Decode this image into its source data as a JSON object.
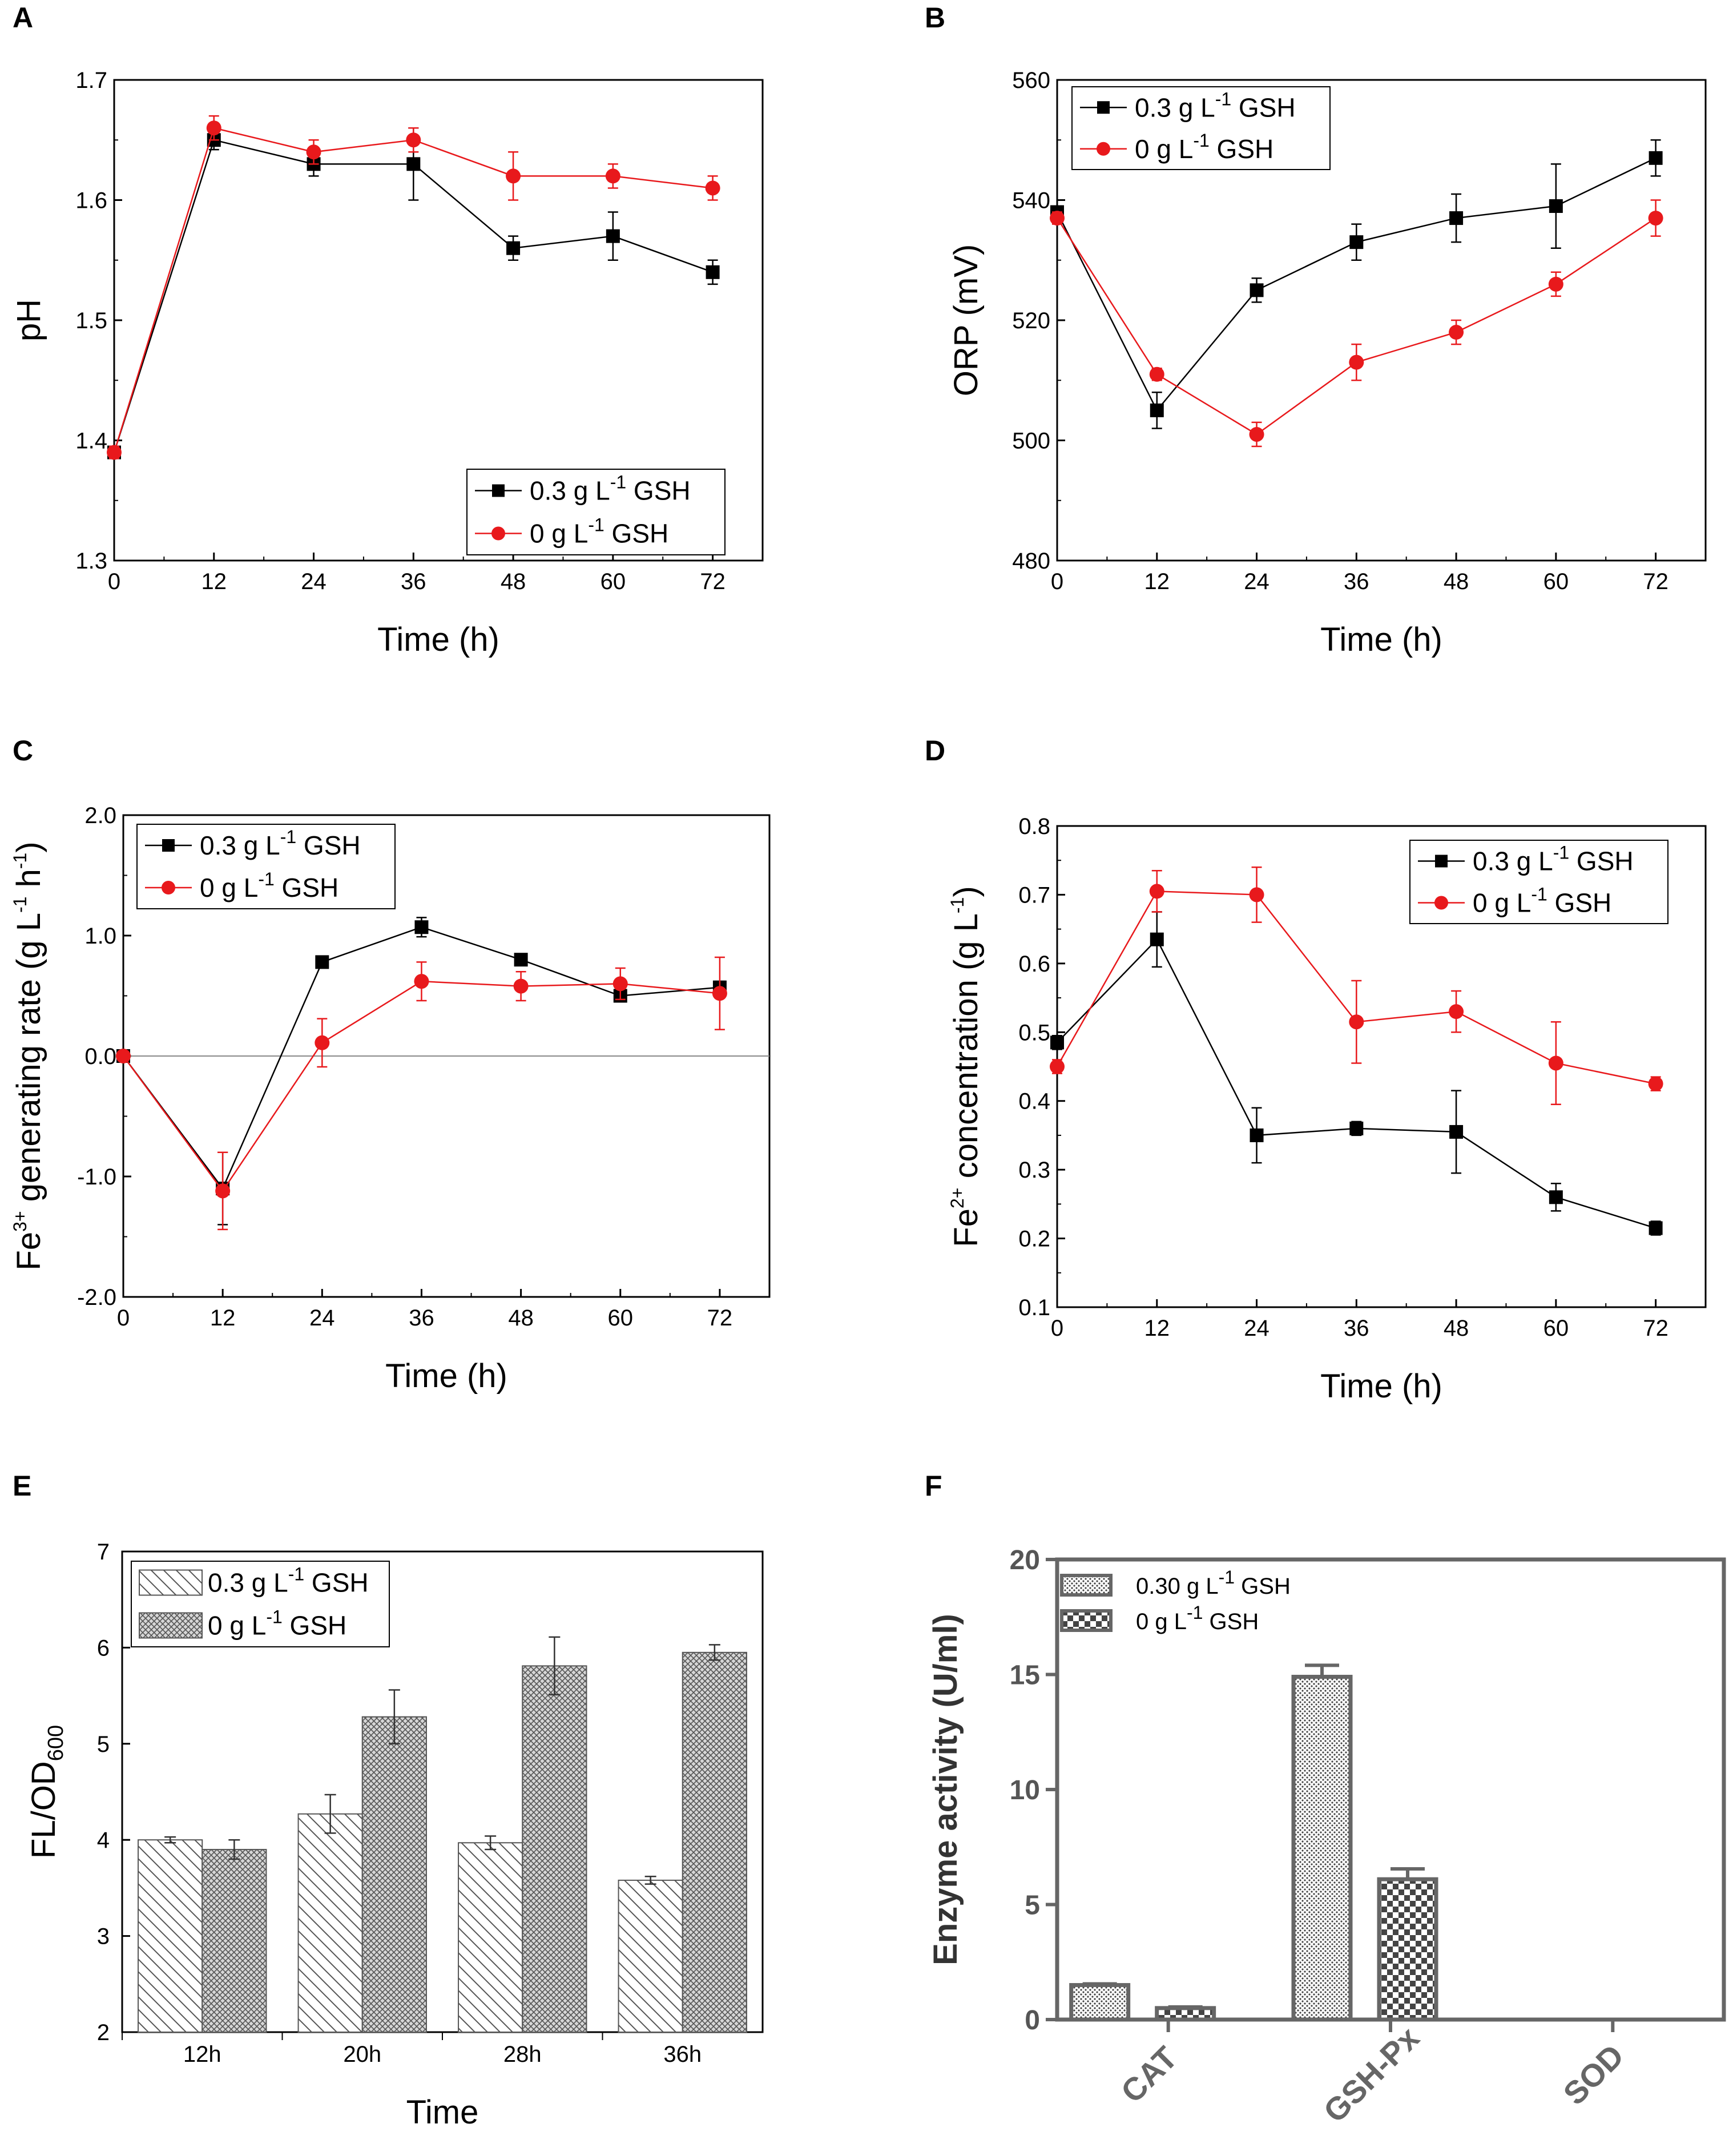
{
  "colors": {
    "black_series": "#000000",
    "red_series": "#e8191c",
    "frame": "#000000",
    "f_frame": "#666666"
  },
  "icons": {
    "square_marker": "square-marker-icon",
    "circle_marker": "circle-marker-icon"
  },
  "chart_data": [
    {
      "panel": "A",
      "type": "line",
      "xlabel": "Time (h)",
      "ylabel": "pH",
      "x": [
        0,
        12,
        24,
        36,
        48,
        60,
        72
      ],
      "xticks": [
        "0",
        "12",
        "24",
        "36",
        "48",
        "60",
        "72"
      ],
      "xlim": [
        0,
        78
      ],
      "yticks": [
        "1.3",
        "1.4",
        "1.5",
        "1.6",
        "1.7"
      ],
      "ylim": [
        1.3,
        1.7
      ],
      "legend": {
        "placement": "bottom-right",
        "entries": [
          {
            "main": "0.3 g L",
            "sup": "-1",
            "post": " GSH"
          },
          {
            "main": "0 g L",
            "sup": "-1",
            "post": " GSH"
          }
        ]
      },
      "series": [
        {
          "name": "0.3 g L-1 GSH",
          "marker": "square",
          "color": "#000000",
          "values": [
            1.39,
            1.65,
            1.63,
            1.63,
            1.56,
            1.57,
            1.54
          ],
          "errors": [
            0.005,
            0.008,
            0.01,
            0.03,
            0.01,
            0.02,
            0.01
          ]
        },
        {
          "name": "0 g L-1 GSH",
          "marker": "circle",
          "color": "#e8191c",
          "values": [
            1.39,
            1.66,
            1.64,
            1.65,
            1.62,
            1.62,
            1.61
          ],
          "errors": [
            0.005,
            0.01,
            0.01,
            0.01,
            0.02,
            0.01,
            0.01
          ]
        }
      ]
    },
    {
      "panel": "B",
      "type": "line",
      "xlabel": "Time (h)",
      "ylabel": "ORP (mV)",
      "x": [
        0,
        12,
        24,
        36,
        48,
        60,
        72
      ],
      "xticks": [
        "0",
        "12",
        "24",
        "36",
        "48",
        "60",
        "72"
      ],
      "xlim": [
        0,
        78
      ],
      "yticks": [
        "480",
        "500",
        "520",
        "540",
        "560"
      ],
      "ylim": [
        480,
        560
      ],
      "legend": {
        "placement": "top-left",
        "entries": [
          {
            "main": "0.3 g L",
            "sup": "-1",
            "post": " GSH"
          },
          {
            "main": "0 g L",
            "sup": "-1",
            "post": " GSH"
          }
        ]
      },
      "series": [
        {
          "name": "0.3 g L-1 GSH",
          "marker": "square",
          "color": "#000000",
          "values": [
            538,
            505,
            525,
            533,
            537,
            539,
            547
          ],
          "errors": [
            1,
            3,
            2,
            3,
            4,
            7,
            3
          ]
        },
        {
          "name": "0 g L-1 GSH",
          "marker": "circle",
          "color": "#e8191c",
          "values": [
            537,
            511,
            501,
            513,
            518,
            526,
            537
          ],
          "errors": [
            1,
            1,
            2,
            3,
            2,
            2,
            3
          ]
        }
      ]
    },
    {
      "panel": "C",
      "type": "line",
      "xlabel": "Time (h)",
      "ylabel_parts": {
        "pre": "Fe",
        "sup1": "3+",
        "mid": " generating rate (g L",
        "sup2": "-1",
        "mid2": " h",
        "sup3": "-1",
        "post": ")"
      },
      "x": [
        0,
        12,
        24,
        36,
        48,
        60,
        72
      ],
      "xticks": [
        "0",
        "12",
        "24",
        "36",
        "48",
        "60",
        "72"
      ],
      "xlim": [
        0,
        78
      ],
      "yticks": [
        "-2.0",
        "-1.0",
        "0.0",
        "1.0",
        "2.0"
      ],
      "ylim": [
        -2.0,
        2.0
      ],
      "zero_line": true,
      "legend": {
        "placement": "top-left",
        "entries": [
          {
            "main": "0.3 g L",
            "sup": "-1",
            "post": " GSH"
          },
          {
            "main": "0 g L",
            "sup": "-1",
            "post": " GSH"
          }
        ]
      },
      "series": [
        {
          "name": "0.3 g L-1 GSH",
          "marker": "square",
          "color": "#000000",
          "values": [
            0.0,
            -1.1,
            0.78,
            1.07,
            0.8,
            0.5,
            0.57
          ],
          "errors": [
            0.02,
            0.3,
            0.03,
            0.08,
            0.04,
            0.04,
            0.05
          ]
        },
        {
          "name": "0 g L-1 GSH",
          "marker": "circle",
          "color": "#e8191c",
          "values": [
            0.0,
            -1.12,
            0.11,
            0.62,
            0.58,
            0.6,
            0.52
          ],
          "errors": [
            0.02,
            0.32,
            0.2,
            0.16,
            0.12,
            0.13,
            0.3
          ]
        }
      ]
    },
    {
      "panel": "D",
      "type": "line",
      "xlabel": "Time (h)",
      "ylabel_parts": {
        "pre": "Fe",
        "sup1": "2+",
        "mid": " concentration (g L",
        "sup2": "-1",
        "post": ")"
      },
      "x": [
        0,
        12,
        24,
        36,
        48,
        60,
        72
      ],
      "xticks": [
        "0",
        "12",
        "24",
        "36",
        "48",
        "60",
        "72"
      ],
      "xlim": [
        0,
        78
      ],
      "yticks": [
        "0.1",
        "0.2",
        "0.3",
        "0.4",
        "0.5",
        "0.6",
        "0.7",
        "0.8"
      ],
      "ylim": [
        0.1,
        0.8
      ],
      "legend": {
        "placement": "top-right",
        "entries": [
          {
            "main": "0.3 g L",
            "sup": "-1",
            "post": " GSH"
          },
          {
            "main": "0 g L",
            "sup": "-1",
            "post": " GSH"
          }
        ]
      },
      "series": [
        {
          "name": "0.3 g L-1 GSH",
          "marker": "square",
          "color": "#000000",
          "values": [
            0.485,
            0.635,
            0.35,
            0.36,
            0.355,
            0.26,
            0.215
          ],
          "errors": [
            0.01,
            0.04,
            0.04,
            0.01,
            0.06,
            0.02,
            0.01
          ]
        },
        {
          "name": "0 g L-1 GSH",
          "marker": "circle",
          "color": "#e8191c",
          "values": [
            0.45,
            0.705,
            0.7,
            0.515,
            0.53,
            0.455,
            0.425
          ],
          "errors": [
            0.01,
            0.03,
            0.04,
            0.06,
            0.03,
            0.06,
            0.01
          ]
        }
      ]
    },
    {
      "panel": "E",
      "type": "bar",
      "xlabel": "Time",
      "ylabel_parts": {
        "pre": "FL/OD",
        "sub": "600"
      },
      "categories": [
        "12h",
        "20h",
        "28h",
        "36h"
      ],
      "yticks": [
        "2",
        "3",
        "4",
        "5",
        "6",
        "7"
      ],
      "ylim": [
        2,
        7
      ],
      "legend": {
        "placement": "top-left",
        "entries": [
          {
            "main": "0.3 g L",
            "sup": "-1",
            "post": " GSH"
          },
          {
            "main": "0 g L",
            "sup": "-1",
            "post": " GSH"
          }
        ]
      },
      "series": [
        {
          "name": "0.3 g L-1 GSH",
          "pattern": "diagonal-hatch",
          "values": [
            4.0,
            4.27,
            3.97,
            3.58
          ],
          "errors": [
            0.03,
            0.2,
            0.07,
            0.04
          ]
        },
        {
          "name": "0 g L-1 GSH",
          "pattern": "crosshatch",
          "values": [
            3.9,
            5.28,
            5.81,
            5.95
          ],
          "errors": [
            0.1,
            0.28,
            0.3,
            0.08
          ]
        }
      ]
    },
    {
      "panel": "F",
      "type": "bar",
      "ylabel": "Enzyme activity (U/ml)",
      "categories": [
        "CAT",
        "GSH-Px",
        "SOD"
      ],
      "yticks": [
        "0",
        "5",
        "10",
        "15",
        "20"
      ],
      "ylim": [
        0,
        20
      ],
      "legend": {
        "placement": "top-left",
        "entries": [
          {
            "main": "0.30 g L",
            "sup": "-1",
            "post": " GSH"
          },
          {
            "main": "0 g L",
            "sup": "-1",
            "post": " GSH"
          }
        ]
      },
      "series": [
        {
          "name": "0.30 g L-1 GSH",
          "pattern": "fine-dots",
          "values": [
            1.5,
            14.9,
            0
          ],
          "errors": [
            0.05,
            0.5,
            0
          ]
        },
        {
          "name": "0 g L-1 GSH",
          "pattern": "checker",
          "values": [
            0.5,
            6.1,
            0
          ],
          "errors": [
            0.05,
            0.45,
            0
          ]
        }
      ]
    }
  ]
}
